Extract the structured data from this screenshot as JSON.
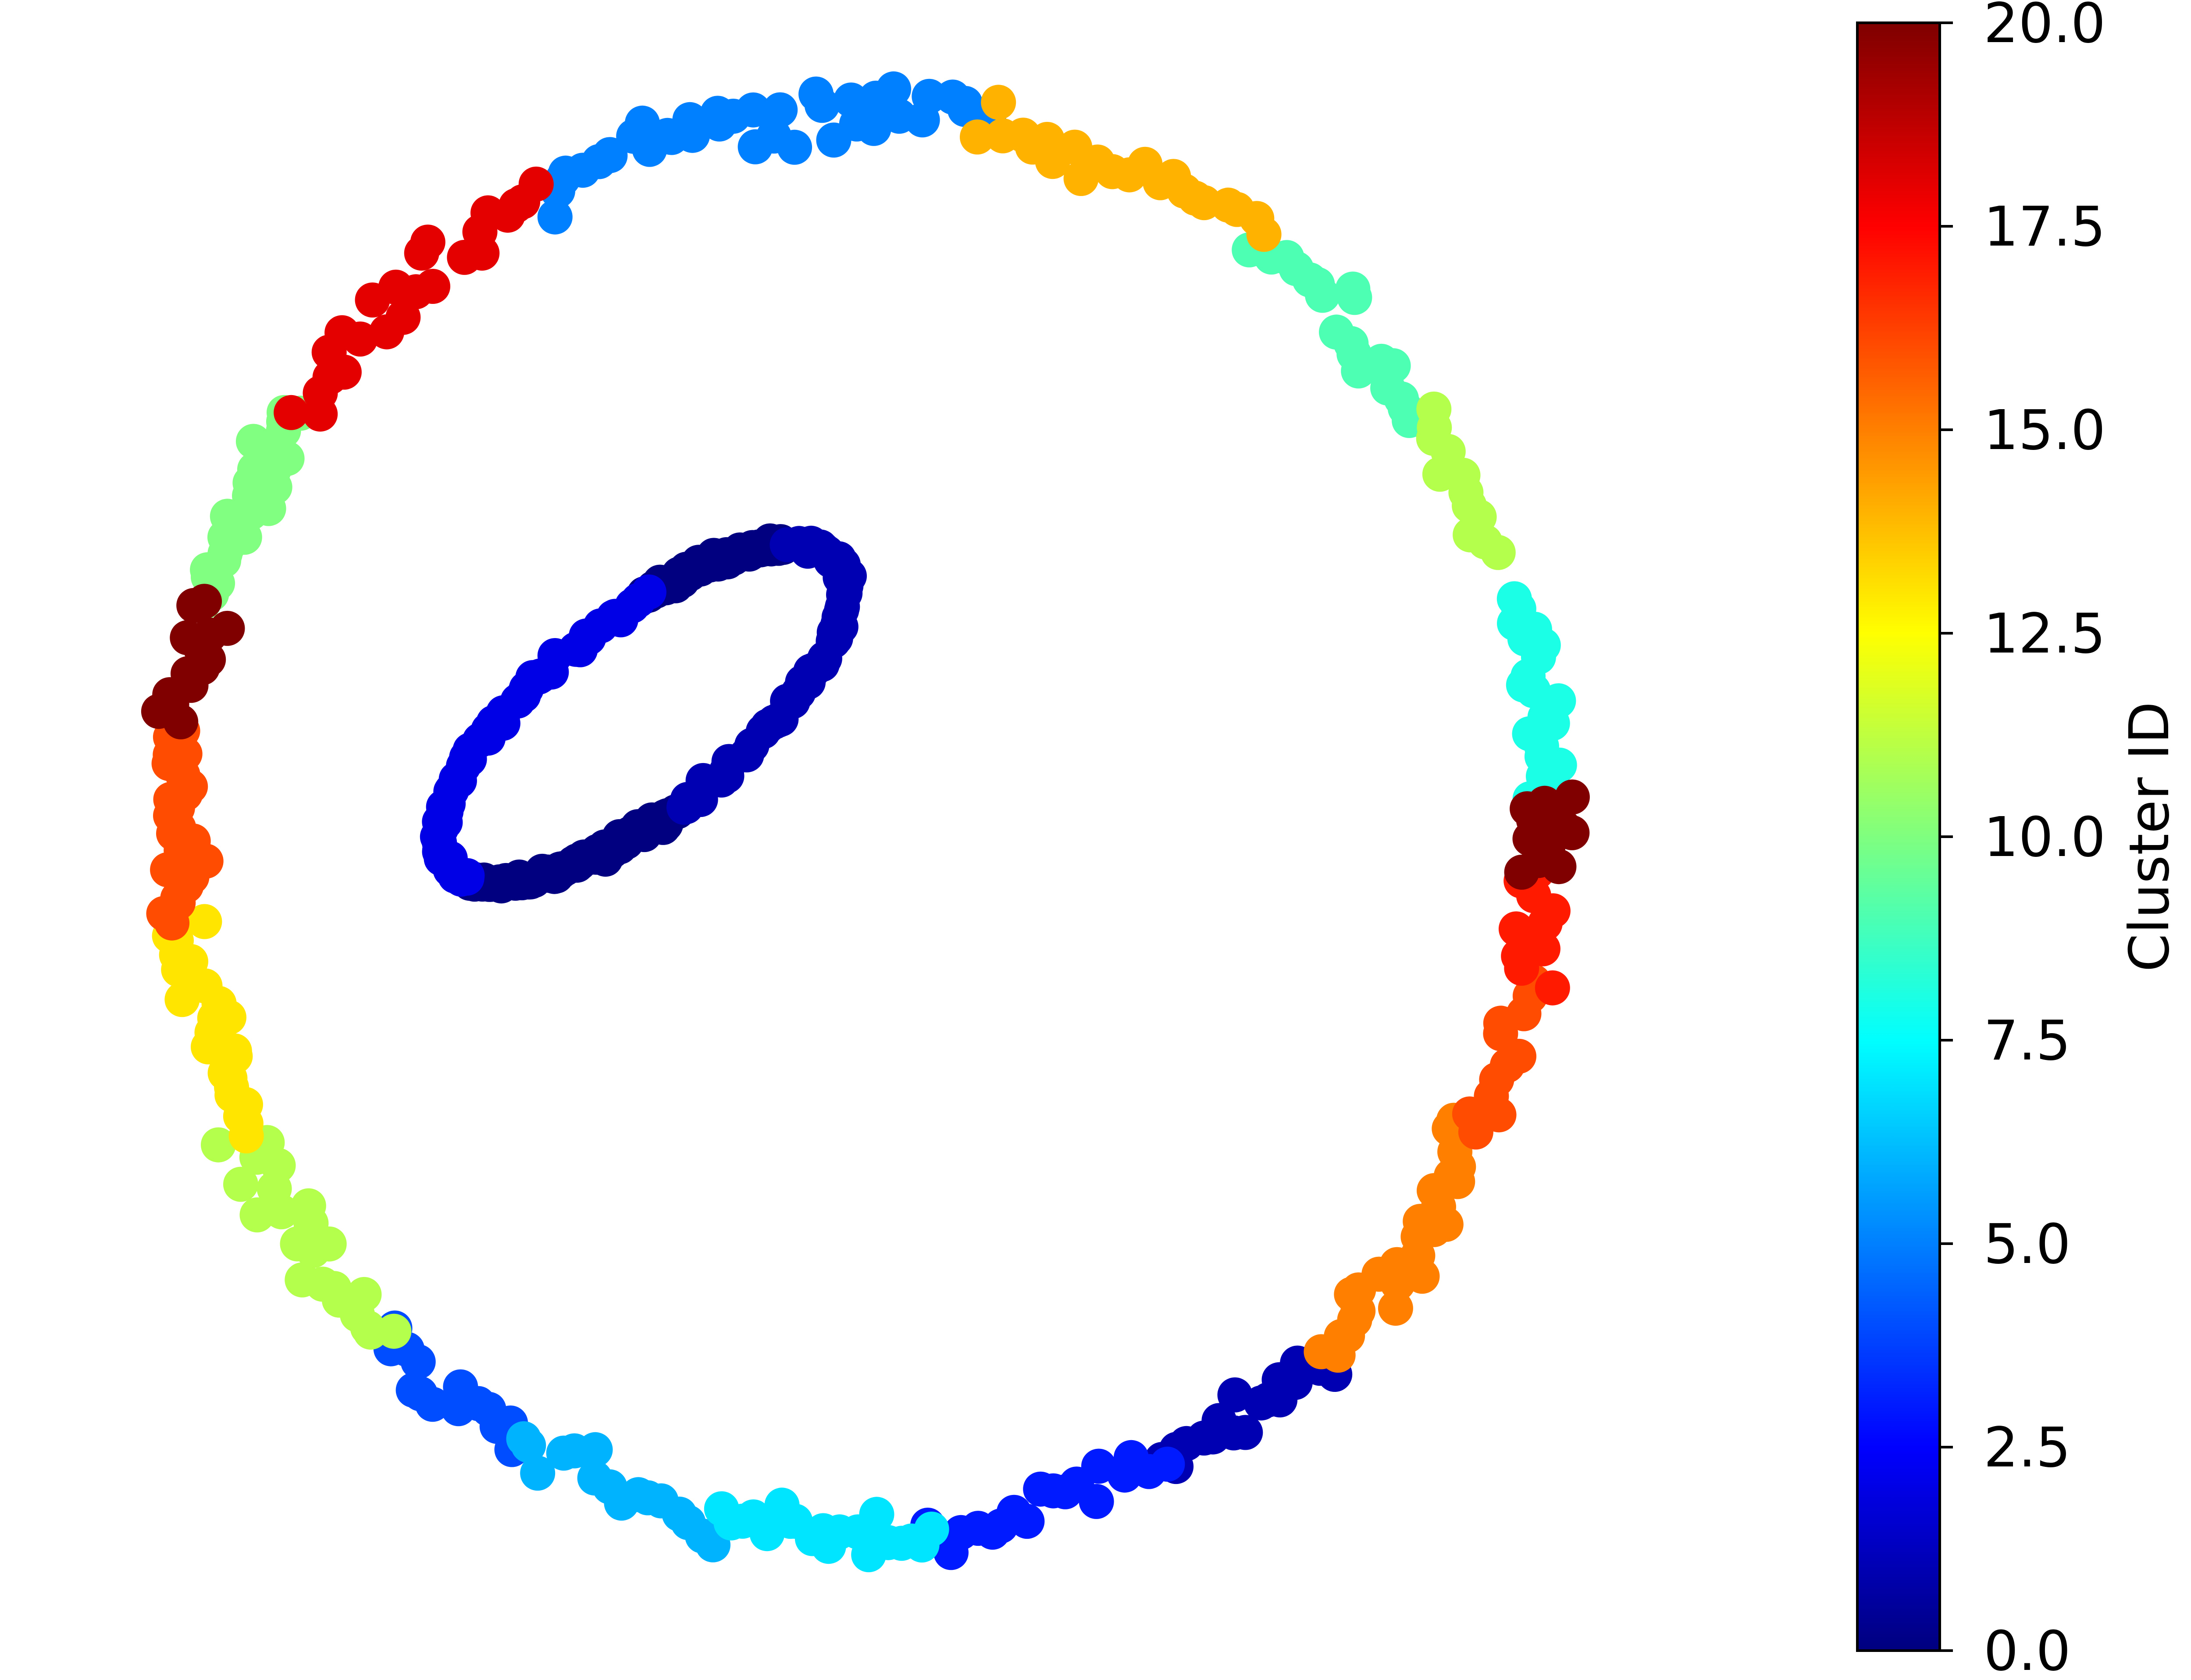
{
  "chart_data": {
    "type": "scatter",
    "title": "",
    "xlabel": "",
    "ylabel": "",
    "axes_visible": false,
    "grid": false,
    "legend": "none",
    "colormap": "jet",
    "color_range": [
      0,
      20
    ],
    "colorbar": {
      "label": "Cluster ID",
      "ticks": [
        0,
        2.5,
        5,
        7.5,
        10,
        12.5,
        15,
        17.5,
        20
      ],
      "tick_labels": [
        "0.0",
        "2.5",
        "5.0",
        "7.5",
        "10.0",
        "12.5",
        "15.0",
        "17.5",
        "20.0"
      ],
      "position": "right"
    },
    "x_range": [
      -1.22,
      1.22
    ],
    "y_range": [
      -1.22,
      1.22
    ],
    "clusters": [
      {
        "id": 0,
        "shape": "inner-ring-arc",
        "center": [
          -0.32,
          0.18
        ],
        "start_deg": 195,
        "end_deg": 262,
        "count": 90
      },
      {
        "id": 0,
        "shape": "inner-ring-arc",
        "center": [
          -0.32,
          0.18
        ],
        "start_deg": 28,
        "end_deg": 72,
        "count": 70
      },
      {
        "id": 1,
        "shape": "inner-ring-arc",
        "center": [
          -0.32,
          0.18
        ],
        "start_deg": 262,
        "end_deg": 388,
        "count": 55
      },
      {
        "id": 2,
        "shape": "inner-ring-arc",
        "center": [
          -0.32,
          0.18
        ],
        "start_deg": 72,
        "end_deg": 195,
        "count": 55
      },
      {
        "id": 1,
        "shape": "outer-ring-arc",
        "start_deg": 296,
        "end_deg": 312,
        "count": 18
      },
      {
        "id": 3,
        "shape": "outer-ring-arc",
        "start_deg": 276,
        "end_deg": 296,
        "count": 18
      },
      {
        "id": 4,
        "shape": "outer-ring-arc",
        "start_deg": 226,
        "end_deg": 240,
        "count": 14
      },
      {
        "id": 5,
        "shape": "outer-ring-arc",
        "start_deg": 80,
        "end_deg": 118,
        "count": 38
      },
      {
        "id": 6,
        "shape": "outer-ring-arc",
        "start_deg": 240,
        "end_deg": 258,
        "count": 16
      },
      {
        "id": 7,
        "shape": "outer-ring-arc",
        "start_deg": 258,
        "end_deg": 276,
        "count": 20
      },
      {
        "id": 8,
        "shape": "outer-ring-arc",
        "start_deg": 2,
        "end_deg": 18,
        "count": 20
      },
      {
        "id": 9,
        "shape": "outer-ring-arc",
        "start_deg": 35,
        "end_deg": 55,
        "count": 20
      },
      {
        "id": 10,
        "shape": "outer-ring-arc",
        "start_deg": 145,
        "end_deg": 162,
        "count": 26
      },
      {
        "id": 11,
        "shape": "outer-ring-arc",
        "start_deg": 22,
        "end_deg": 35,
        "count": 12
      },
      {
        "id": 11,
        "shape": "outer-ring-arc",
        "start_deg": 206,
        "end_deg": 226,
        "count": 22
      },
      {
        "id": 13,
        "shape": "outer-ring-arc",
        "start_deg": 188,
        "end_deg": 206,
        "count": 24
      },
      {
        "id": 14,
        "shape": "outer-ring-arc",
        "start_deg": 55,
        "end_deg": 80,
        "count": 22
      },
      {
        "id": 15,
        "shape": "outer-ring-arc",
        "start_deg": 312,
        "end_deg": 334,
        "count": 26
      },
      {
        "id": 16,
        "shape": "outer-ring-arc",
        "start_deg": 334,
        "end_deg": 347,
        "count": 12
      },
      {
        "id": 16,
        "shape": "outer-ring-arc",
        "start_deg": 172,
        "end_deg": 188,
        "count": 24
      },
      {
        "id": 17,
        "shape": "outer-ring-arc",
        "start_deg": 347,
        "end_deg": 356,
        "count": 10
      },
      {
        "id": 18,
        "shape": "outer-ring-arc",
        "start_deg": 118,
        "end_deg": 145,
        "count": 24
      },
      {
        "id": 20,
        "shape": "outer-ring-arc",
        "start_deg": 356,
        "end_deg": 362,
        "count": 14
      },
      {
        "id": 20,
        "shape": "outer-ring-arc",
        "start_deg": 162,
        "end_deg": 172,
        "count": 14
      }
    ]
  }
}
